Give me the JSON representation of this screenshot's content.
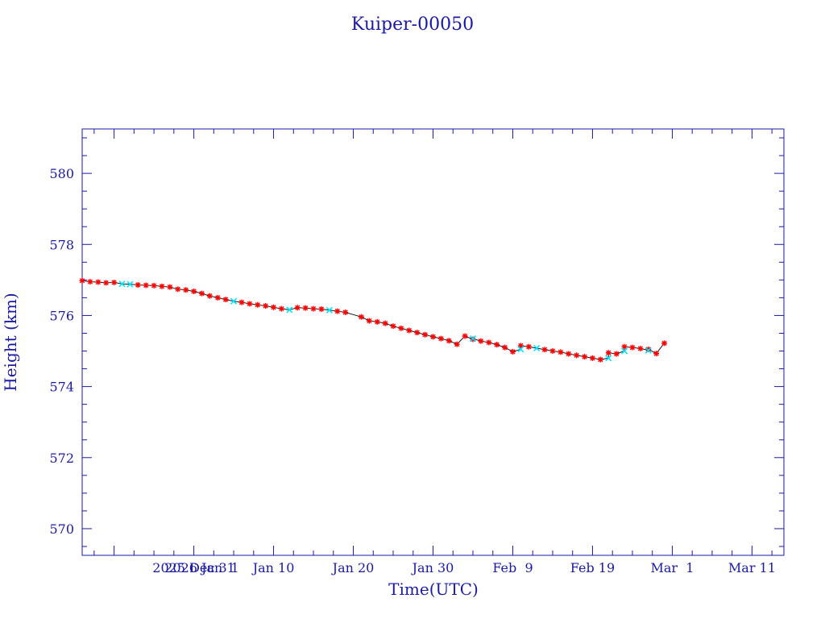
{
  "chart_data": {
    "type": "scatter",
    "title": "Kuiper-00050",
    "xlabel": "Time(UTC)",
    "ylabel": "Height (km)",
    "xlim": [
      "2025-12-17",
      "2026-03-15"
    ],
    "ylim": [
      569.25,
      581.25
    ],
    "x_ticks": [
      {
        "date": "2025-12-31",
        "label": "2025 Dec 31"
      },
      {
        "date": "2026-01-01",
        "label": "2026 Jan  1"
      },
      {
        "date": "2026-01-10",
        "label": "Jan 10"
      },
      {
        "date": "2026-01-20",
        "label": "Jan 20"
      },
      {
        "date": "2026-01-30",
        "label": "Jan 30"
      },
      {
        "date": "2026-02-09",
        "label": "Feb  9"
      },
      {
        "date": "2026-02-19",
        "label": "Feb 19"
      },
      {
        "date": "2026-03-01",
        "label": "Mar  1"
      },
      {
        "date": "2026-03-11",
        "label": "Mar 11"
      }
    ],
    "y_ticks": [
      570,
      572,
      574,
      576,
      578,
      580
    ],
    "colors": {
      "axis": "#1a1aa6",
      "line": "#1a1a1a",
      "marker_main": "#ff0000",
      "marker_alt": "#00e5ff"
    },
    "series": [
      {
        "marker": "star",
        "points": [
          [
            "2025-12-17",
            576.98
          ],
          [
            "2025-12-18",
            576.95
          ],
          [
            "2025-12-19",
            576.94
          ],
          [
            "2025-12-20",
            576.92
          ],
          [
            "2025-12-21",
            576.93
          ],
          [
            "2025-12-24",
            576.86
          ],
          [
            "2025-12-25",
            576.85
          ],
          [
            "2025-12-26",
            576.84
          ],
          [
            "2025-12-27",
            576.82
          ],
          [
            "2025-12-28",
            576.8
          ],
          [
            "2025-12-29",
            576.74
          ],
          [
            "2025-12-30",
            576.72
          ],
          [
            "2025-12-31",
            576.68
          ],
          [
            "2026-01-01",
            576.62
          ],
          [
            "2026-01-02",
            576.55
          ],
          [
            "2026-01-03",
            576.5
          ],
          [
            "2026-01-04",
            576.45
          ],
          [
            "2026-01-06",
            576.37
          ],
          [
            "2026-01-07",
            576.33
          ],
          [
            "2026-01-08",
            576.3
          ],
          [
            "2026-01-09",
            576.27
          ],
          [
            "2026-01-10",
            576.23
          ],
          [
            "2026-01-11",
            576.19
          ],
          [
            "2026-01-13",
            576.22
          ],
          [
            "2026-01-14",
            576.21
          ],
          [
            "2026-01-15",
            576.19
          ],
          [
            "2026-01-16",
            576.18
          ],
          [
            "2026-01-18",
            576.12
          ],
          [
            "2026-01-19",
            576.09
          ],
          [
            "2026-01-21",
            575.96
          ],
          [
            "2026-01-22",
            575.85
          ],
          [
            "2026-01-23",
            575.82
          ],
          [
            "2026-01-24",
            575.78
          ],
          [
            "2026-01-25",
            575.7
          ],
          [
            "2026-01-26",
            575.64
          ],
          [
            "2026-01-27",
            575.58
          ],
          [
            "2026-01-28",
            575.52
          ],
          [
            "2026-01-29",
            575.46
          ],
          [
            "2026-01-30",
            575.4
          ],
          [
            "2026-01-31",
            575.35
          ],
          [
            "2026-02-01",
            575.29
          ],
          [
            "2026-02-02",
            575.19
          ],
          [
            "2026-02-03",
            575.42
          ],
          [
            "2026-02-04",
            575.33
          ],
          [
            "2026-02-05",
            575.28
          ],
          [
            "2026-02-06",
            575.24
          ],
          [
            "2026-02-07",
            575.18
          ],
          [
            "2026-02-08",
            575.1
          ],
          [
            "2026-02-09",
            574.98
          ],
          [
            "2026-02-10",
            575.15
          ],
          [
            "2026-02-11",
            575.12
          ],
          [
            "2026-02-13",
            575.04
          ],
          [
            "2026-02-14",
            575.0
          ],
          [
            "2026-02-15",
            574.97
          ],
          [
            "2026-02-16",
            574.92
          ],
          [
            "2026-02-17",
            574.88
          ],
          [
            "2026-02-18",
            574.84
          ],
          [
            "2026-02-19",
            574.8
          ],
          [
            "2026-02-20",
            574.76
          ],
          [
            "2026-02-21",
            574.95
          ],
          [
            "2026-02-22",
            574.92
          ],
          [
            "2026-02-23",
            575.12
          ],
          [
            "2026-02-24",
            575.1
          ],
          [
            "2026-02-25",
            575.07
          ],
          [
            "2026-02-26",
            575.05
          ],
          [
            "2026-02-27",
            574.93
          ],
          [
            "2026-02-28",
            575.22
          ]
        ]
      },
      {
        "marker": "cross",
        "points": [
          [
            "2025-12-22",
            576.89
          ],
          [
            "2025-12-23",
            576.88
          ],
          [
            "2026-01-05",
            576.4
          ],
          [
            "2026-01-12",
            576.16
          ],
          [
            "2026-01-17",
            576.15
          ],
          [
            "2026-02-04",
            575.35
          ],
          [
            "2026-02-10",
            575.05
          ],
          [
            "2026-02-12",
            575.08
          ],
          [
            "2026-02-21",
            574.8
          ],
          [
            "2026-02-23",
            575.0
          ],
          [
            "2026-02-26",
            575.02
          ]
        ]
      }
    ]
  }
}
